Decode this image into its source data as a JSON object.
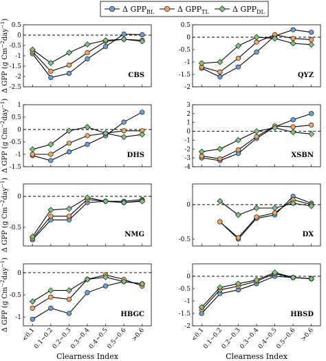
{
  "colors": {
    "BL": "#6d9ed6",
    "TL": "#f4a460",
    "DL": "#7fc47f",
    "line": "#000000"
  },
  "legend": [
    {
      "key": "BL",
      "prefix": "Δ GPP",
      "sub": "BL",
      "marker": "circle"
    },
    {
      "key": "TL",
      "prefix": "Δ GPP",
      "sub": "TL",
      "marker": "circle"
    },
    {
      "key": "DL",
      "prefix": "Δ GPP",
      "sub": "DL",
      "marker": "diamond"
    }
  ],
  "xlabel": "Clearness Index",
  "ylabel_prefix": "Δ GPP (g Cm",
  "ylabel_mid": "day",
  "ylabel_suffix": ")",
  "ylabel_sup1": "−2",
  "ylabel_sup2": "−1",
  "chart_data": [
    {
      "type": "line",
      "site": "CBS",
      "ylim": [
        -2.5,
        0.5
      ],
      "yticks": [
        "0.5",
        "0",
        "-0.5",
        "-1",
        "-1.5",
        "-2",
        "-2.5"
      ],
      "categories": [
        "<0.1",
        "0.1~0.2",
        "0.2~0.3",
        "0.3~0.4",
        "0.4~0.5",
        "0.5~0.6",
        ">0.6"
      ],
      "series": [
        {
          "key": "BL",
          "values": [
            -0.9,
            -2.05,
            -1.85,
            -1.15,
            -0.55,
            0.05,
            0.02
          ]
        },
        {
          "key": "TL",
          "values": [
            -0.8,
            -1.75,
            -1.45,
            -0.85,
            -0.3,
            -0.2,
            -0.25
          ]
        },
        {
          "key": "DL",
          "values": [
            -0.7,
            -1.35,
            -0.85,
            -0.45,
            -0.25,
            -0.2,
            -0.3
          ]
        }
      ]
    },
    {
      "type": "line",
      "site": "QYZ",
      "ylim": [
        -2,
        0.5
      ],
      "yticks": [
        "0.5",
        "0",
        "-0.5",
        "-1",
        "-1.5",
        "-2"
      ],
      "categories": [
        "<0.1",
        "0.1~0.2",
        "0.2~0.3",
        "0.3~0.4",
        "0.4~0.5",
        "0.5~0.6",
        ">0.6"
      ],
      "series": [
        {
          "key": "BL",
          "values": [
            -1.25,
            -1.6,
            -1.2,
            -0.6,
            0.05,
            0.3,
            0.2
          ]
        },
        {
          "key": "TL",
          "values": [
            -1.2,
            -1.4,
            -0.85,
            -0.2,
            0.1,
            -0.05,
            -0.1
          ]
        },
        {
          "key": "DL",
          "values": [
            -1.05,
            -1.0,
            -0.35,
            0.0,
            -0.05,
            -0.25,
            -0.3
          ]
        }
      ]
    },
    {
      "type": "line",
      "site": "DHS",
      "ylim": [
        -1.5,
        1.0
      ],
      "yticks": [
        "1",
        "0.5",
        "0",
        "-0.5",
        "-1",
        "-1.5"
      ],
      "categories": [
        "<0.1",
        "0.1~0.2",
        "0.2~0.3",
        "0.3~0.4",
        "0.4~0.5",
        "0.5~0.6",
        ">0.6"
      ],
      "series": [
        {
          "key": "BL",
          "values": [
            -1.05,
            -1.25,
            -0.9,
            -0.6,
            -0.25,
            0.3,
            0.7
          ]
        },
        {
          "key": "TL",
          "values": [
            -1.0,
            -1.0,
            -0.55,
            -0.25,
            -0.15,
            -0.05,
            -0.05
          ]
        },
        {
          "key": "DL",
          "values": [
            -0.8,
            -0.6,
            -0.05,
            0.1,
            -0.15,
            -0.3,
            -0.2
          ]
        }
      ]
    },
    {
      "type": "line",
      "site": "XSBN",
      "ylim": [
        -4,
        3
      ],
      "yticks": [
        "3",
        "2",
        "1",
        "0",
        "-1",
        "-2",
        "-3",
        "-4"
      ],
      "categories": [
        "<0.1",
        "0.1~0.2",
        "0.2~0.3",
        "0.3~0.4",
        "0.4~0.5",
        "0.5~0.6",
        ">0.6"
      ],
      "series": [
        {
          "key": "BL",
          "values": [
            -3.0,
            -3.3,
            -2.5,
            -0.8,
            0.5,
            1.3,
            2.0
          ]
        },
        {
          "key": "TL",
          "values": [
            -2.8,
            -3.1,
            -2.1,
            -0.6,
            0.6,
            0.5,
            0.7
          ]
        },
        {
          "key": "DL",
          "values": [
            -2.3,
            -2.0,
            -1.0,
            0.0,
            0.4,
            -0.1,
            -0.3
          ]
        }
      ]
    },
    {
      "type": "line",
      "site": "NMG",
      "ylim": [
        -0.8,
        0.2
      ],
      "yticks": [
        "0",
        "-0.5"
      ],
      "categories": [
        "<0.1",
        "0.1~0.2",
        "0.2~0.3",
        "0.3~0.4",
        "0.4~0.5",
        "0.5~0.6",
        ">0.6"
      ],
      "series": [
        {
          "key": "BL",
          "values": [
            -0.7,
            -0.38,
            -0.38,
            -0.1,
            -0.08,
            -0.08,
            -0.05
          ]
        },
        {
          "key": "TL",
          "values": [
            -0.68,
            -0.32,
            -0.32,
            -0.05,
            -0.08,
            -0.1,
            -0.07
          ]
        },
        {
          "key": "DL",
          "values": [
            -0.65,
            -0.22,
            -0.2,
            -0.02,
            -0.08,
            -0.1,
            -0.08
          ]
        }
      ]
    },
    {
      "type": "line",
      "site": "DX",
      "ylim": [
        -0.6,
        0.3
      ],
      "yticks": [
        "0",
        "-0.5"
      ],
      "categories": [
        "<0.1",
        "0.1~0.2",
        "0.2~0.3",
        "0.3~0.4",
        "0.4~0.5",
        "0.5~0.6",
        ">0.6"
      ],
      "series": [
        {
          "key": "BL",
          "values": [
            null,
            -0.25,
            -0.5,
            -0.2,
            -0.15,
            0.12,
            0.02
          ]
        },
        {
          "key": "TL",
          "values": [
            null,
            -0.25,
            -0.48,
            -0.18,
            -0.12,
            0.07,
            0.0
          ]
        },
        {
          "key": "DL",
          "values": [
            null,
            0.05,
            -0.15,
            -0.05,
            -0.05,
            0.02,
            -0.02
          ]
        }
      ]
    },
    {
      "type": "line",
      "site": "HBGC",
      "ylim": [
        -1.2,
        0.2
      ],
      "yticks": [
        "0",
        "-0.5",
        "-1"
      ],
      "categories": [
        "<0.1",
        "0.1~0.2",
        "0.2~0.3",
        "0.3~0.4",
        "0.4~0.5",
        "0.5~0.6",
        ">0.6"
      ],
      "series": [
        {
          "key": "BL",
          "values": [
            -1.05,
            -0.8,
            -0.92,
            -0.45,
            -0.3,
            -0.2,
            -0.25
          ]
        },
        {
          "key": "TL",
          "values": [
            -0.8,
            -0.55,
            -0.6,
            -0.15,
            -0.05,
            -0.15,
            -0.3
          ]
        },
        {
          "key": "DL",
          "values": [
            -0.65,
            -0.4,
            -0.4,
            -0.15,
            -0.1,
            -0.2,
            -0.25
          ]
        }
      ]
    },
    {
      "type": "line",
      "site": "HBSD",
      "ylim": [
        -2.0,
        0.5
      ],
      "yticks": [
        "0",
        "-0.5",
        "-1",
        "-1.5",
        "-2"
      ],
      "categories": [
        "<0.1",
        "0.1~0.2",
        "0.2~0.3",
        "0.3~0.4",
        "0.4~0.5",
        "0.5~0.6",
        ">0.6"
      ],
      "series": [
        {
          "key": "BL",
          "values": [
            -1.5,
            -0.7,
            -0.55,
            -0.3,
            0.0,
            -0.05,
            -0.1
          ]
        },
        {
          "key": "TL",
          "values": [
            -1.35,
            -0.55,
            -0.4,
            -0.2,
            0.1,
            -0.05,
            -0.1
          ]
        },
        {
          "key": "DL",
          "values": [
            -1.25,
            -0.45,
            -0.3,
            -0.15,
            0.15,
            -0.05,
            -0.1
          ]
        }
      ]
    }
  ]
}
